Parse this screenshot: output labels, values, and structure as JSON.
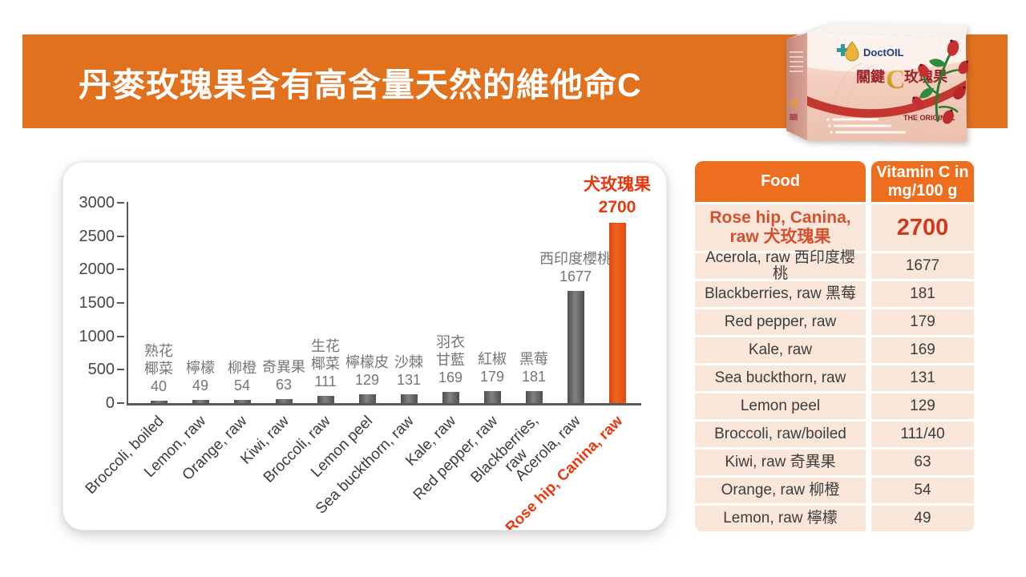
{
  "header": {
    "title": "丹麥玫瑰果含有高含量天然的維他命C",
    "banner_color": "#E2711E"
  },
  "product_box": {
    "brand": "DoctOIL",
    "product_name_prefix": "關鍵",
    "product_name_letter": "C",
    "product_name_suffix": "玫瑰果",
    "tagline": "THE ORIGINAL"
  },
  "chart_data": {
    "type": "bar",
    "title": "",
    "xlabel": "",
    "ylabel": "",
    "ylim": [
      0,
      3000
    ],
    "y_ticks": [
      0,
      500,
      1000,
      1500,
      2000,
      2500,
      3000
    ],
    "grid": false,
    "legend": false,
    "bars": [
      {
        "x_label": "Broccoli, boiled",
        "name_zh": "熟花\n椰菜",
        "value": 40,
        "highlight": false
      },
      {
        "x_label": "Lemon, raw",
        "name_zh": "檸檬",
        "value": 49,
        "highlight": false
      },
      {
        "x_label": "Orange, raw",
        "name_zh": "柳橙",
        "value": 54,
        "highlight": false
      },
      {
        "x_label": "Kiwi, raw",
        "name_zh": "奇異果",
        "value": 63,
        "highlight": false
      },
      {
        "x_label": "Broccoli, raw",
        "name_zh": "生花\n椰菜",
        "value": 111,
        "highlight": false
      },
      {
        "x_label": "Lemon peel",
        "name_zh": "檸檬皮",
        "value": 129,
        "highlight": false
      },
      {
        "x_label": "Sea buckthorn, raw",
        "name_zh": "沙棘",
        "value": 131,
        "highlight": false
      },
      {
        "x_label": "Kale, raw",
        "name_zh": "羽衣\n甘藍",
        "value": 169,
        "highlight": false
      },
      {
        "x_label": "Red pepper, raw",
        "name_zh": "紅椒",
        "value": 179,
        "highlight": false
      },
      {
        "x_label": "Blackberries,\nraw",
        "name_zh": "黑莓",
        "value": 181,
        "highlight": false
      },
      {
        "x_label": "Acerola, raw",
        "name_zh": "西印度櫻桃",
        "value": 1677,
        "highlight": false
      },
      {
        "x_label": "Rose hip, Canina, raw",
        "name_zh": "犬玫瑰果",
        "value": 2700,
        "highlight": true
      }
    ],
    "colors": {
      "bar": "#595959",
      "highlight_bar": "#E8500D",
      "bar_label": "#767676",
      "highlight_text": "#E8380C",
      "axis": "#595959",
      "x_label": "#3C3C3C"
    }
  },
  "table": {
    "headers": [
      "Food",
      "Vitamin C in\nmg/100 g"
    ],
    "rows": [
      {
        "food": "Rose hip, Canina, raw 犬玫瑰果",
        "value": "2700",
        "highlight": true
      },
      {
        "food": "Acerola, raw 西印度櫻桃",
        "value": "1677",
        "highlight": false
      },
      {
        "food": "Blackberries, raw 黑莓",
        "value": "181",
        "highlight": false
      },
      {
        "food": "Red pepper, raw",
        "value": "179",
        "highlight": false
      },
      {
        "food": "Kale, raw",
        "value": "169",
        "highlight": false
      },
      {
        "food": "Sea buckthorn, raw",
        "value": "131",
        "highlight": false
      },
      {
        "food": "Lemon peel",
        "value": "129",
        "highlight": false
      },
      {
        "food": "Broccoli, raw/boiled",
        "value": "111/40",
        "highlight": false
      },
      {
        "food": "Kiwi, raw 奇異果",
        "value": "63",
        "highlight": false
      },
      {
        "food": "Orange, raw 柳橙",
        "value": "54",
        "highlight": false
      },
      {
        "food": "Lemon, raw 檸檬",
        "value": "49",
        "highlight": false
      }
    ],
    "colors": {
      "header_bg": "#ED6E1E",
      "row_bg": "#FBE6DA",
      "highlight_food": "#D4512E",
      "highlight_value": "#CB3A1E"
    }
  }
}
